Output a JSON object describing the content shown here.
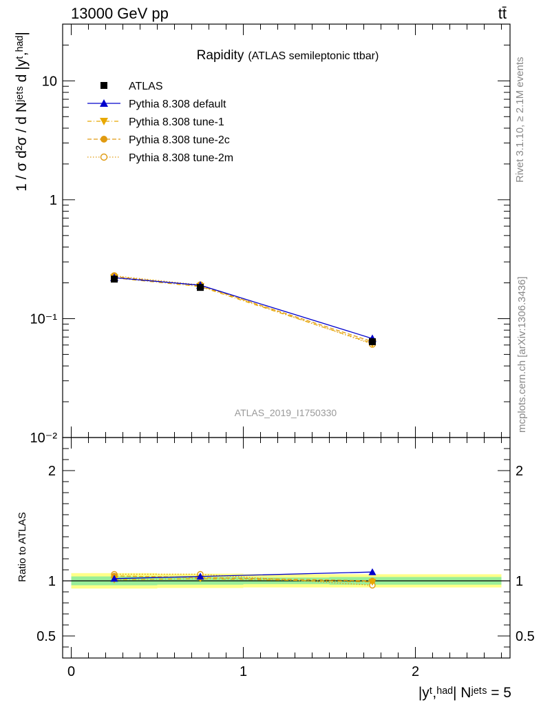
{
  "header": {
    "energy_label": "13000 GeV pp",
    "process_label": "tt̄"
  },
  "side_labels": {
    "rivet": "Rivet 3.1.10, ≥ 2.1M events",
    "mcplots": "mcplots.cern.ch [arXiv:1306.3436]"
  },
  "chart_data": [
    {
      "type": "line",
      "title": "Rapidity",
      "subtitle": "(ATLAS semileptonic ttbar)",
      "watermark": "ATLAS_2019_I1750330",
      "ylabel": "1 / σ d²σ / d Nʲᵉᵗˢ d |yᵗ,ʰᵃᵈ|",
      "yscale": "log",
      "ylim": [
        0.01,
        30
      ],
      "xlim": [
        -0.05,
        2.55
      ],
      "y_tick_labels": [
        "10⁻²",
        "10⁻¹",
        "1",
        "10"
      ],
      "legend_placement": "top-left",
      "x": [
        0.25,
        0.75,
        1.75
      ],
      "series": [
        {
          "name": "ATLAS",
          "color": "#000000",
          "marker": "square",
          "line": "none",
          "values": [
            0.215,
            0.183,
            0.064
          ]
        },
        {
          "name": "Pythia 8.308 default",
          "color": "#0000cc",
          "marker": "triangle-up",
          "line": "solid",
          "values": [
            0.221,
            0.191,
            0.068
          ]
        },
        {
          "name": "Pythia 8.308 tune-1",
          "color": "#e8a800",
          "marker": "triangle-down",
          "line": "dashdot",
          "values": [
            0.22,
            0.186,
            0.062
          ]
        },
        {
          "name": "Pythia 8.308 tune-2c",
          "color": "#e09a10",
          "marker": "circle-filled",
          "line": "dashed",
          "values": [
            0.226,
            0.189,
            0.064
          ]
        },
        {
          "name": "Pythia 8.308 tune-2m",
          "color": "#e09a10",
          "marker": "circle-open",
          "line": "dotted",
          "values": [
            0.229,
            0.192,
            0.061
          ]
        }
      ]
    },
    {
      "type": "line",
      "ylabel": "Ratio to ATLAS",
      "xlabel": "|yᵗ,ʰᵃᵈ| Nʲᵉᵗˢ = 5",
      "ylim": [
        0.3,
        2.3
      ],
      "xlim": [
        -0.05,
        2.55
      ],
      "y_ticks": [
        0.5,
        1,
        2
      ],
      "x_ticks": [
        0,
        1,
        2
      ],
      "y_tick_labels": [
        "0.5",
        "1",
        "2"
      ],
      "x_tick_labels": [
        "0",
        "1",
        "2"
      ],
      "bands": {
        "edges": [
          0,
          0.5,
          1,
          1.5,
          2.5
        ],
        "stat_sys_half_width": [
          0.07,
          0.065,
          0.06,
          0.06
        ],
        "stat_half_width": [
          0.04,
          0.035,
          0.03,
          0.035
        ]
      },
      "x": [
        0.25,
        0.75,
        1.75
      ],
      "series": [
        {
          "name": "Pythia 8.308 default",
          "values": [
            1.02,
            1.04,
            1.08
          ]
        },
        {
          "name": "Pythia 8.308 tune-1",
          "values": [
            1.01,
            1.02,
            0.99
          ]
        },
        {
          "name": "Pythia 8.308 tune-2c",
          "values": [
            1.045,
            1.03,
            1.0
          ]
        },
        {
          "name": "Pythia 8.308 tune-2m",
          "values": [
            1.06,
            1.06,
            0.96
          ]
        }
      ]
    }
  ]
}
